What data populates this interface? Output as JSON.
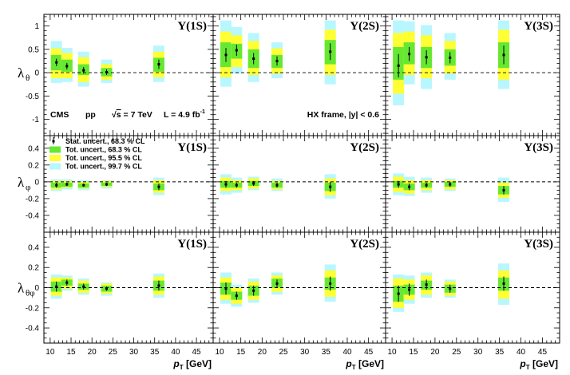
{
  "chart_data": {
    "type": "scatter",
    "x_label": "p",
    "x_label_sub": "T",
    "x_unit": " [GeV]",
    "x_range": [
      8.5,
      49
    ],
    "x_ticks": [
      "10",
      "15",
      "20",
      "25",
      "30",
      "35",
      "40",
      "45"
    ],
    "x_tick_values": [
      10,
      15,
      20,
      25,
      30,
      35,
      40,
      45
    ],
    "pt_bins": [
      11.5,
      14.0,
      18.0,
      23.5,
      36.0
    ],
    "states": [
      "Υ(1S)",
      "Υ(2S)",
      "Υ(3S)"
    ],
    "info": {
      "experiment": "CMS",
      "system": "pp",
      "energy_prefix": "√",
      "energy_s": "s",
      "energy_value": " = 7 TeV",
      "lumi": "L = 4.9 fb",
      "lumi_exp": "-1",
      "frame": "HX frame, |y| < 0.6"
    },
    "legend": [
      {
        "label": "Stat. uncert., 68.3 % CL",
        "color": "#000000"
      },
      {
        "label": "Tot. uncert., 68.3 % CL",
        "color": "#66e833"
      },
      {
        "label": "Tot. uncert., 95.5 % CL",
        "color": "#ffff33"
      },
      {
        "label": "Tot. uncert., 99.7 % CL",
        "color": "#b8f7ff"
      }
    ],
    "colors": {
      "green": "#66e833",
      "yellow": "#ffff33",
      "cyan": "#b8f7ff",
      "dash": "#000000"
    },
    "rows": [
      {
        "ylabel": "λ",
        "ylabel_sub": "θ",
        "ylim": [
          -1.35,
          1.25
        ],
        "yticks": [
          -1,
          -0.5,
          0,
          0.5,
          1
        ],
        "ytick_labels": [
          "-1",
          "-0.5",
          "0",
          "0.5",
          "1"
        ],
        "panels": [
          {
            "points": [
              {
                "v": 0.22,
                "s": 0.08,
                "g": [
                  0.05,
                  0.38
                ],
                "y": [
                  -0.12,
                  0.52
                ],
                "c": [
                  -0.22,
                  0.68
                ]
              },
              {
                "v": 0.14,
                "s": 0.07,
                "g": [
                  0.02,
                  0.28
                ],
                "y": [
                  -0.12,
                  0.42
                ],
                "c": [
                  -0.2,
                  0.53
                ]
              },
              {
                "v": 0.05,
                "s": 0.07,
                "g": [
                  -0.05,
                  0.18
                ],
                "y": [
                  -0.2,
                  0.33
                ],
                "c": [
                  -0.3,
                  0.45
                ]
              },
              {
                "v": 0.01,
                "s": 0.06,
                "g": [
                  -0.08,
                  0.1
                ],
                "y": [
                  -0.15,
                  0.18
                ],
                "c": [
                  -0.22,
                  0.28
                ]
              },
              {
                "v": 0.18,
                "s": 0.1,
                "g": [
                  0.02,
                  0.32
                ],
                "y": [
                  -0.1,
                  0.45
                ],
                "c": [
                  -0.2,
                  0.58
                ]
              }
            ]
          },
          {
            "points": [
              {
                "v": 0.38,
                "s": 0.15,
                "g": [
                  0.12,
                  0.65
                ],
                "y": [
                  -0.1,
                  0.88
                ],
                "c": [
                  -0.3,
                  1.12
                ]
              },
              {
                "v": 0.48,
                "s": 0.12,
                "g": [
                  0.3,
                  0.62
                ],
                "y": [
                  0.12,
                  0.8
                ],
                "c": [
                  -0.02,
                  0.98
                ]
              },
              {
                "v": 0.3,
                "s": 0.12,
                "g": [
                  0.1,
                  0.5
                ],
                "y": [
                  -0.05,
                  0.68
                ],
                "c": [
                  -0.2,
                  0.85
                ]
              },
              {
                "v": 0.25,
                "s": 0.1,
                "g": [
                  0.1,
                  0.38
                ],
                "y": [
                  -0.02,
                  0.52
                ],
                "c": [
                  -0.12,
                  0.65
                ]
              },
              {
                "v": 0.45,
                "s": 0.18,
                "g": [
                  0.18,
                  0.7
                ],
                "y": [
                  -0.05,
                  0.92
                ],
                "c": [
                  -0.25,
                  1.12
                ]
              }
            ]
          },
          {
            "points": [
              {
                "v": 0.15,
                "s": 0.25,
                "g": [
                  -0.15,
                  0.55
                ],
                "y": [
                  -0.45,
                  0.85
                ],
                "c": [
                  -0.7,
                  1.12
                ]
              },
              {
                "v": 0.4,
                "s": 0.15,
                "g": [
                  0.18,
                  0.65
                ],
                "y": [
                  -0.05,
                  0.88
                ],
                "c": [
                  -0.25,
                  1.1
                ]
              },
              {
                "v": 0.33,
                "s": 0.15,
                "g": [
                  0.1,
                  0.55
                ],
                "y": [
                  -0.12,
                  0.8
                ],
                "c": [
                  -0.35,
                  1.02
                ]
              },
              {
                "v": 0.32,
                "s": 0.12,
                "g": [
                  0.15,
                  0.5
                ],
                "y": [
                  -0.02,
                  0.68
                ],
                "c": [
                  -0.15,
                  0.85
                ]
              },
              {
                "v": 0.38,
                "s": 0.2,
                "g": [
                  0.1,
                  0.65
                ],
                "y": [
                  -0.15,
                  0.92
                ],
                "c": [
                  -0.35,
                  1.12
                ]
              }
            ]
          }
        ]
      },
      {
        "ylabel": "λ",
        "ylabel_sub": "φ",
        "ylim": [
          -0.6,
          0.55
        ],
        "yticks": [
          -0.4,
          -0.2,
          0,
          0.2,
          0.4
        ],
        "ytick_labels": [
          "-0.4",
          "-0.2",
          "0",
          "0.2",
          "0.4"
        ],
        "panels": [
          {
            "points": [
              {
                "v": -0.04,
                "s": 0.03,
                "g": [
                  -0.07,
                  -0.01
                ],
                "y": [
                  -0.09,
                  0.01
                ],
                "c": [
                  -0.11,
                  0.03
                ]
              },
              {
                "v": -0.03,
                "s": 0.02,
                "g": [
                  -0.06,
                  -0.01
                ],
                "y": [
                  -0.07,
                  0.01
                ],
                "c": [
                  -0.09,
                  0.03
                ]
              },
              {
                "v": -0.04,
                "s": 0.02,
                "g": [
                  -0.07,
                  -0.02
                ],
                "y": [
                  -0.08,
                  0.0
                ],
                "c": [
                  -0.1,
                  0.02
                ]
              },
              {
                "v": -0.03,
                "s": 0.02,
                "g": [
                  -0.05,
                  -0.01
                ],
                "y": [
                  -0.06,
                  0.01
                ],
                "c": [
                  -0.08,
                  0.02
                ]
              },
              {
                "v": -0.06,
                "s": 0.04,
                "g": [
                  -0.1,
                  -0.02
                ],
                "y": [
                  -0.13,
                  0.02
                ],
                "c": [
                  -0.16,
                  0.05
                ]
              }
            ]
          },
          {
            "points": [
              {
                "v": -0.03,
                "s": 0.04,
                "g": [
                  -0.07,
                  0.01
                ],
                "y": [
                  -0.11,
                  0.05
                ],
                "c": [
                  -0.15,
                  0.09
                ]
              },
              {
                "v": -0.04,
                "s": 0.03,
                "g": [
                  -0.07,
                  -0.01
                ],
                "y": [
                  -0.1,
                  0.02
                ],
                "c": [
                  -0.13,
                  0.05
                ]
              },
              {
                "v": -0.02,
                "s": 0.03,
                "g": [
                  -0.05,
                  0.01
                ],
                "y": [
                  -0.08,
                  0.04
                ],
                "c": [
                  -0.1,
                  0.06
                ]
              },
              {
                "v": -0.04,
                "s": 0.03,
                "g": [
                  -0.07,
                  -0.01
                ],
                "y": [
                  -0.09,
                  0.01
                ],
                "c": [
                  -0.11,
                  0.04
                ]
              },
              {
                "v": -0.06,
                "s": 0.06,
                "g": [
                  -0.11,
                  -0.01
                ],
                "y": [
                  -0.16,
                  0.04
                ],
                "c": [
                  -0.2,
                  0.09
                ]
              }
            ]
          },
          {
            "points": [
              {
                "v": -0.03,
                "s": 0.04,
                "g": [
                  -0.07,
                  0.01
                ],
                "y": [
                  -0.12,
                  0.06
                ],
                "c": [
                  -0.16,
                  0.1
                ]
              },
              {
                "v": -0.06,
                "s": 0.04,
                "g": [
                  -0.1,
                  -0.02
                ],
                "y": [
                  -0.14,
                  0.02
                ],
                "c": [
                  -0.17,
                  0.06
                ]
              },
              {
                "v": -0.04,
                "s": 0.03,
                "g": [
                  -0.07,
                  -0.01
                ],
                "y": [
                  -0.1,
                  0.02
                ],
                "c": [
                  -0.13,
                  0.05
                ]
              },
              {
                "v": -0.03,
                "s": 0.03,
                "g": [
                  -0.06,
                  0.0
                ],
                "y": [
                  -0.09,
                  0.02
                ],
                "c": [
                  -0.11,
                  0.04
                ]
              },
              {
                "v": -0.1,
                "s": 0.05,
                "g": [
                  -0.15,
                  -0.05
                ],
                "y": [
                  -0.19,
                  -0.01
                ],
                "c": [
                  -0.24,
                  0.05
                ]
              }
            ]
          }
        ]
      },
      {
        "ylabel": "λ",
        "ylabel_sub": "θφ",
        "ylim": [
          -0.55,
          0.55
        ],
        "yticks": [
          -0.4,
          -0.2,
          0,
          0.2,
          0.4
        ],
        "ytick_labels": [
          "-0.4",
          "-0.2",
          "0",
          "0.2",
          "0.4"
        ],
        "panels": [
          {
            "points": [
              {
                "v": 0.01,
                "s": 0.05,
                "g": [
                  -0.04,
                  0.06
                ],
                "y": [
                  -0.08,
                  0.1
                ],
                "c": [
                  -0.11,
                  0.13
                ]
              },
              {
                "v": 0.05,
                "s": 0.03,
                "g": [
                  0.02,
                  0.08
                ],
                "y": [
                  -0.01,
                  0.1
                ],
                "c": [
                  -0.03,
                  0.12
                ]
              },
              {
                "v": 0.01,
                "s": 0.03,
                "g": [
                  -0.02,
                  0.04
                ],
                "y": [
                  -0.05,
                  0.07
                ],
                "c": [
                  -0.07,
                  0.09
                ]
              },
              {
                "v": -0.01,
                "s": 0.02,
                "g": [
                  -0.04,
                  0.02
                ],
                "y": [
                  -0.06,
                  0.04
                ],
                "c": [
                  -0.08,
                  0.05
                ]
              },
              {
                "v": 0.02,
                "s": 0.05,
                "g": [
                  -0.03,
                  0.07
                ],
                "y": [
                  -0.07,
                  0.11
                ],
                "c": [
                  -0.1,
                  0.14
                ]
              }
            ]
          },
          {
            "points": [
              {
                "v": -0.01,
                "s": 0.06,
                "g": [
                  -0.07,
                  0.05
                ],
                "y": [
                  -0.12,
                  0.1
                ],
                "c": [
                  -0.16,
                  0.15
                ]
              },
              {
                "v": -0.08,
                "s": 0.04,
                "g": [
                  -0.12,
                  -0.04
                ],
                "y": [
                  -0.16,
                  0.0
                ],
                "c": [
                  -0.19,
                  0.03
                ]
              },
              {
                "v": -0.03,
                "s": 0.05,
                "g": [
                  -0.08,
                  0.02
                ],
                "y": [
                  -0.12,
                  0.06
                ],
                "c": [
                  -0.15,
                  0.09
                ]
              },
              {
                "v": 0.04,
                "s": 0.04,
                "g": [
                  0.0,
                  0.09
                ],
                "y": [
                  -0.04,
                  0.12
                ],
                "c": [
                  -0.07,
                  0.15
                ]
              },
              {
                "v": 0.04,
                "s": 0.07,
                "g": [
                  -0.02,
                  0.1
                ],
                "y": [
                  -0.09,
                  0.17
                ],
                "c": [
                  -0.14,
                  0.23
                ]
              }
            ]
          },
          {
            "points": [
              {
                "v": -0.06,
                "s": 0.08,
                "g": [
                  -0.14,
                  0.02
                ],
                "y": [
                  -0.2,
                  0.09
                ],
                "c": [
                  -0.24,
                  0.13
                ]
              },
              {
                "v": -0.02,
                "s": 0.06,
                "g": [
                  -0.07,
                  0.03
                ],
                "y": [
                  -0.12,
                  0.08
                ],
                "c": [
                  -0.16,
                  0.12
                ]
              },
              {
                "v": 0.03,
                "s": 0.05,
                "g": [
                  -0.02,
                  0.07
                ],
                "y": [
                  -0.07,
                  0.12
                ],
                "c": [
                  -0.1,
                  0.15
                ]
              },
              {
                "v": -0.01,
                "s": 0.04,
                "g": [
                  -0.05,
                  0.03
                ],
                "y": [
                  -0.08,
                  0.06
                ],
                "c": [
                  -0.1,
                  0.08
                ]
              },
              {
                "v": 0.04,
                "s": 0.07,
                "g": [
                  -0.03,
                  0.1
                ],
                "y": [
                  -0.11,
                  0.17
                ],
                "c": [
                  -0.17,
                  0.24
                ]
              }
            ]
          }
        ]
      }
    ]
  }
}
